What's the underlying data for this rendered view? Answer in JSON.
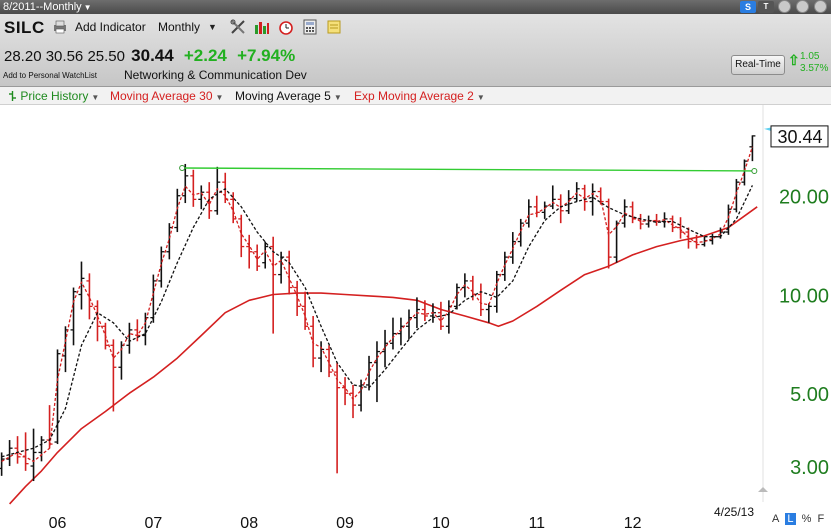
{
  "window": {
    "title": "8/2011--Monthly"
  },
  "toolbar": {
    "symbol": "SILC",
    "add_indicator": "Add Indicator",
    "period": "Monthly",
    "sbadge": "S",
    "tbadge": "T"
  },
  "quote": {
    "open": "28.20",
    "high": "30.56",
    "low": "25.50",
    "last": "30.44",
    "change": "+2.24",
    "change_pct": "+7.94%",
    "watchlist": "Add to Personal WatchList",
    "industry": "Networking & Communication Dev",
    "realtime_label": "Real-Time",
    "rt_change": "1.05",
    "rt_pct": "3.57%"
  },
  "legend": [
    {
      "label": "Price History",
      "color": "#1e8a1e"
    },
    {
      "label": "Moving Average 30",
      "color": "#d42020"
    },
    {
      "label": "Moving Average 5",
      "color": "#111111"
    },
    {
      "label": "Exp Moving Average 2",
      "color": "#d42020"
    }
  ],
  "bottom": {
    "date_label": "4/25/13",
    "icons": [
      "A",
      "L",
      "%",
      "F"
    ]
  },
  "chart_data": {
    "type": "line",
    "scale": "log",
    "ylim": [
      2.5,
      36
    ],
    "y_ticks": [
      3.0,
      5.0,
      10.0,
      20.0
    ],
    "y_tick_labels": [
      "3.00",
      "5.00",
      "10.00",
      "20.00"
    ],
    "x_ticks": [
      2006,
      2007,
      2008,
      2009,
      2010,
      2011,
      2012
    ],
    "x_tick_labels": [
      "06",
      "07",
      "08",
      "09",
      "10",
      "11",
      "12"
    ],
    "xlim": [
      2005.4,
      2013.35
    ],
    "last_price": 30.44,
    "last_price_label": "30.44",
    "resistance": {
      "from": 2007.3,
      "to": 2013.27,
      "y_start": 24.3,
      "y_end": 23.8
    },
    "ohlc": [
      [
        2005.417,
        2.95,
        3.3,
        2.8,
        3.15
      ],
      [
        2005.5,
        3.15,
        3.6,
        3.0,
        3.4
      ],
      [
        2005.583,
        3.4,
        3.7,
        3.05,
        3.2
      ],
      [
        2005.667,
        3.2,
        3.8,
        2.9,
        3.05
      ],
      [
        2005.75,
        3.0,
        3.9,
        2.7,
        3.3
      ],
      [
        2005.833,
        3.3,
        3.7,
        3.1,
        3.6
      ],
      [
        2005.917,
        3.6,
        4.6,
        3.4,
        3.5
      ],
      [
        2006.0,
        3.55,
        6.8,
        3.5,
        6.6
      ],
      [
        2006.083,
        6.5,
        8.0,
        5.8,
        7.8
      ],
      [
        2006.167,
        7.8,
        10.5,
        7.0,
        10.2
      ],
      [
        2006.25,
        10.0,
        12.6,
        9.0,
        11.2
      ],
      [
        2006.333,
        11.0,
        11.6,
        8.4,
        9.2
      ],
      [
        2006.417,
        9.2,
        9.6,
        7.2,
        8.0
      ],
      [
        2006.5,
        8.0,
        8.2,
        6.8,
        7.0
      ],
      [
        2006.583,
        7.0,
        7.3,
        4.4,
        6.0
      ],
      [
        2006.667,
        6.0,
        7.2,
        5.5,
        7.0
      ],
      [
        2006.75,
        7.0,
        8.2,
        6.6,
        7.8
      ],
      [
        2006.833,
        7.8,
        8.4,
        7.2,
        7.5
      ],
      [
        2006.917,
        7.5,
        8.8,
        7.0,
        8.5
      ],
      [
        2007.0,
        8.5,
        11.5,
        8.2,
        11.0
      ],
      [
        2007.083,
        11.0,
        14.0,
        10.5,
        13.5
      ],
      [
        2007.167,
        13.5,
        16.5,
        12.8,
        16.0
      ],
      [
        2007.25,
        16.0,
        21.0,
        15.5,
        20.0
      ],
      [
        2007.333,
        20.0,
        25.0,
        19.0,
        23.0
      ],
      [
        2007.417,
        23.0,
        24.0,
        18.5,
        19.5
      ],
      [
        2007.5,
        19.5,
        21.5,
        18.2,
        20.5
      ],
      [
        2007.583,
        20.5,
        22.0,
        17.0,
        18.0
      ],
      [
        2007.667,
        18.0,
        24.5,
        17.5,
        22.0
      ],
      [
        2007.75,
        22.0,
        23.5,
        19.0,
        19.5
      ],
      [
        2007.833,
        19.5,
        20.5,
        16.5,
        17.0
      ],
      [
        2007.917,
        17.0,
        17.5,
        13.0,
        14.0
      ],
      [
        2008.0,
        14.0,
        15.2,
        12.0,
        13.5
      ],
      [
        2008.083,
        13.5,
        14.2,
        11.8,
        12.2
      ],
      [
        2008.167,
        12.5,
        14.5,
        12.0,
        14.0
      ],
      [
        2008.25,
        14.0,
        15.0,
        7.6,
        11.5
      ],
      [
        2008.333,
        11.5,
        13.5,
        10.8,
        13.0
      ],
      [
        2008.417,
        13.0,
        13.6,
        10.0,
        10.5
      ],
      [
        2008.5,
        10.5,
        11.0,
        8.6,
        9.2
      ],
      [
        2008.583,
        9.2,
        10.2,
        7.8,
        8.0
      ],
      [
        2008.667,
        8.0,
        8.6,
        6.0,
        6.4
      ],
      [
        2008.75,
        6.4,
        7.2,
        5.8,
        6.8
      ],
      [
        2008.833,
        6.8,
        7.0,
        5.6,
        5.8
      ],
      [
        2008.917,
        5.8,
        6.2,
        2.85,
        5.2
      ],
      [
        2009.0,
        5.2,
        5.6,
        4.6,
        5.0
      ],
      [
        2009.083,
        5.0,
        5.3,
        4.2,
        4.6
      ],
      [
        2009.167,
        4.6,
        5.5,
        4.4,
        5.3
      ],
      [
        2009.25,
        5.3,
        6.5,
        5.1,
        6.2
      ],
      [
        2009.333,
        6.2,
        7.2,
        4.7,
        6.7
      ],
      [
        2009.417,
        6.7,
        7.8,
        6.0,
        7.1
      ],
      [
        2009.5,
        7.1,
        8.5,
        6.8,
        7.6
      ],
      [
        2009.583,
        7.6,
        8.5,
        7.0,
        8.0
      ],
      [
        2009.667,
        8.0,
        9.0,
        7.3,
        8.5
      ],
      [
        2009.75,
        8.5,
        9.8,
        7.9,
        9.0
      ],
      [
        2009.833,
        9.0,
        9.6,
        8.3,
        8.6
      ],
      [
        2009.917,
        8.6,
        9.4,
        8.2,
        8.8
      ],
      [
        2010.0,
        8.8,
        9.5,
        7.8,
        8.0
      ],
      [
        2010.083,
        8.0,
        9.6,
        7.6,
        9.2
      ],
      [
        2010.167,
        9.2,
        10.8,
        9.0,
        10.5
      ],
      [
        2010.25,
        10.5,
        11.6,
        9.8,
        11.0
      ],
      [
        2010.333,
        11.0,
        11.4,
        9.6,
        10.0
      ],
      [
        2010.417,
        10.0,
        10.8,
        8.6,
        9.0
      ],
      [
        2010.5,
        9.0,
        9.4,
        8.2,
        9.2
      ],
      [
        2010.583,
        9.2,
        11.8,
        8.8,
        11.5
      ],
      [
        2010.667,
        11.5,
        13.5,
        11.0,
        13.0
      ],
      [
        2010.75,
        13.0,
        15.5,
        12.4,
        14.5
      ],
      [
        2010.833,
        14.5,
        17.0,
        14.0,
        16.5
      ],
      [
        2010.917,
        16.5,
        19.5,
        16.0,
        18.5
      ],
      [
        2011.0,
        18.5,
        20.0,
        17.2,
        17.8
      ],
      [
        2011.083,
        17.8,
        19.2,
        17.0,
        18.6
      ],
      [
        2011.167,
        18.6,
        21.5,
        18.2,
        19.5
      ],
      [
        2011.25,
        19.5,
        20.2,
        16.5,
        18.0
      ],
      [
        2011.333,
        18.0,
        20.8,
        17.6,
        19.6
      ],
      [
        2011.417,
        19.6,
        22.0,
        19.2,
        21.0
      ],
      [
        2011.5,
        21.0,
        21.6,
        18.0,
        19.2
      ],
      [
        2011.583,
        19.2,
        21.8,
        17.4,
        20.6
      ],
      [
        2011.667,
        20.6,
        21.2,
        18.8,
        19.2
      ],
      [
        2011.75,
        19.2,
        19.6,
        12.0,
        13.0
      ],
      [
        2011.833,
        13.0,
        16.8,
        12.5,
        16.5
      ],
      [
        2011.917,
        16.5,
        19.5,
        16.0,
        18.5
      ],
      [
        2012.0,
        18.5,
        19.2,
        16.5,
        17.0
      ],
      [
        2012.083,
        17.0,
        17.6,
        15.8,
        16.4
      ],
      [
        2012.167,
        16.4,
        17.4,
        16.0,
        16.8
      ],
      [
        2012.25,
        16.8,
        17.6,
        16.2,
        16.7
      ],
      [
        2012.333,
        16.7,
        17.8,
        16.0,
        17.0
      ],
      [
        2012.417,
        17.0,
        17.4,
        15.5,
        16.0
      ],
      [
        2012.5,
        16.0,
        17.2,
        14.8,
        15.5
      ],
      [
        2012.583,
        15.5,
        16.0,
        13.8,
        14.5
      ],
      [
        2012.667,
        14.5,
        15.2,
        13.8,
        14.2
      ],
      [
        2012.75,
        14.2,
        15.0,
        14.0,
        14.6
      ],
      [
        2012.833,
        14.6,
        15.3,
        14.2,
        15.0
      ],
      [
        2012.917,
        15.0,
        16.0,
        14.8,
        15.5
      ],
      [
        2013.0,
        15.5,
        18.8,
        15.2,
        18.2
      ],
      [
        2013.083,
        18.2,
        22.5,
        17.8,
        22.0
      ],
      [
        2013.167,
        22.0,
        25.8,
        21.5,
        25.5
      ],
      [
        2013.25,
        28.2,
        30.56,
        25.5,
        30.44
      ]
    ],
    "ma30": [
      [
        2005.5,
        2.3
      ],
      [
        2005.667,
        2.6
      ],
      [
        2005.833,
        2.9
      ],
      [
        2006.0,
        3.3
      ],
      [
        2006.25,
        3.9
      ],
      [
        2006.5,
        4.4
      ],
      [
        2006.75,
        5.0
      ],
      [
        2007.0,
        5.6
      ],
      [
        2007.25,
        6.4
      ],
      [
        2007.5,
        7.5
      ],
      [
        2007.75,
        8.8
      ],
      [
        2008.0,
        9.6
      ],
      [
        2008.25,
        10.0
      ],
      [
        2008.5,
        10.1
      ],
      [
        2008.75,
        10.1
      ],
      [
        2009.0,
        10.0
      ],
      [
        2009.25,
        9.9
      ],
      [
        2009.5,
        9.8
      ],
      [
        2009.75,
        9.6
      ],
      [
        2010.0,
        9.0
      ],
      [
        2010.25,
        8.6
      ],
      [
        2010.5,
        8.2
      ],
      [
        2010.6,
        8.0
      ],
      [
        2010.75,
        8.3
      ],
      [
        2011.0,
        9.2
      ],
      [
        2011.25,
        10.3
      ],
      [
        2011.5,
        11.5
      ],
      [
        2011.75,
        12.2
      ],
      [
        2012.0,
        13.2
      ],
      [
        2012.25,
        14.0
      ],
      [
        2012.5,
        14.6
      ],
      [
        2012.75,
        15.1
      ],
      [
        2013.0,
        16.0
      ],
      [
        2013.15,
        17.2
      ],
      [
        2013.3,
        18.5
      ]
    ],
    "ma5": [
      [
        2005.417,
        3.2
      ],
      [
        2005.583,
        3.3
      ],
      [
        2005.75,
        3.4
      ],
      [
        2005.917,
        3.6
      ],
      [
        2006.083,
        4.5
      ],
      [
        2006.25,
        7.0
      ],
      [
        2006.417,
        8.8
      ],
      [
        2006.583,
        8.2
      ],
      [
        2006.75,
        7.2
      ],
      [
        2006.917,
        7.6
      ],
      [
        2007.083,
        9.5
      ],
      [
        2007.25,
        12.5
      ],
      [
        2007.417,
        16.0
      ],
      [
        2007.583,
        19.5
      ],
      [
        2007.75,
        21.0
      ],
      [
        2007.917,
        18.5
      ],
      [
        2008.083,
        15.5
      ],
      [
        2008.25,
        13.5
      ],
      [
        2008.417,
        12.5
      ],
      [
        2008.583,
        10.5
      ],
      [
        2008.75,
        8.0
      ],
      [
        2008.917,
        6.2
      ],
      [
        2009.083,
        5.3
      ],
      [
        2009.25,
        5.2
      ],
      [
        2009.417,
        5.9
      ],
      [
        2009.583,
        6.8
      ],
      [
        2009.75,
        7.8
      ],
      [
        2009.917,
        8.5
      ],
      [
        2010.083,
        8.7
      ],
      [
        2010.25,
        9.6
      ],
      [
        2010.417,
        10.2
      ],
      [
        2010.583,
        9.8
      ],
      [
        2010.75,
        11.0
      ],
      [
        2010.917,
        14.0
      ],
      [
        2011.083,
        16.8
      ],
      [
        2011.25,
        18.5
      ],
      [
        2011.417,
        19.2
      ],
      [
        2011.583,
        19.8
      ],
      [
        2011.75,
        18.4
      ],
      [
        2011.917,
        17.5
      ],
      [
        2012.083,
        17.0
      ],
      [
        2012.25,
        16.6
      ],
      [
        2012.417,
        16.7
      ],
      [
        2012.583,
        15.8
      ],
      [
        2012.75,
        15.0
      ],
      [
        2012.917,
        15.0
      ],
      [
        2013.083,
        17.0
      ],
      [
        2013.25,
        21.5
      ]
    ],
    "ema2": [
      [
        2005.417,
        3.1
      ],
      [
        2005.583,
        3.3
      ],
      [
        2005.75,
        3.1
      ],
      [
        2005.917,
        3.4
      ],
      [
        2006.0,
        5.5
      ],
      [
        2006.083,
        7.2
      ],
      [
        2006.167,
        9.5
      ],
      [
        2006.25,
        10.9
      ],
      [
        2006.333,
        9.8
      ],
      [
        2006.417,
        8.6
      ],
      [
        2006.5,
        7.5
      ],
      [
        2006.583,
        6.4
      ],
      [
        2006.667,
        6.8
      ],
      [
        2006.75,
        7.6
      ],
      [
        2006.833,
        7.5
      ],
      [
        2006.917,
        8.2
      ],
      [
        2007.0,
        10.1
      ],
      [
        2007.083,
        12.4
      ],
      [
        2007.167,
        14.8
      ],
      [
        2007.25,
        18.3
      ],
      [
        2007.333,
        21.4
      ],
      [
        2007.417,
        20.1
      ],
      [
        2007.5,
        20.4
      ],
      [
        2007.583,
        18.8
      ],
      [
        2007.667,
        21.0
      ],
      [
        2007.75,
        20.0
      ],
      [
        2007.833,
        18.0
      ],
      [
        2007.917,
        15.3
      ],
      [
        2008.0,
        14.1
      ],
      [
        2008.083,
        12.8
      ],
      [
        2008.167,
        13.6
      ],
      [
        2008.25,
        12.2
      ],
      [
        2008.333,
        12.7
      ],
      [
        2008.417,
        11.2
      ],
      [
        2008.5,
        9.9
      ],
      [
        2008.583,
        8.6
      ],
      [
        2008.667,
        7.1
      ],
      [
        2008.75,
        6.9
      ],
      [
        2008.833,
        6.2
      ],
      [
        2008.917,
        5.5
      ],
      [
        2009.0,
        5.2
      ],
      [
        2009.083,
        4.8
      ],
      [
        2009.167,
        5.1
      ],
      [
        2009.25,
        5.8
      ],
      [
        2009.333,
        6.4
      ],
      [
        2009.417,
        6.9
      ],
      [
        2009.5,
        7.4
      ],
      [
        2009.583,
        7.8
      ],
      [
        2009.667,
        8.3
      ],
      [
        2009.75,
        8.8
      ],
      [
        2009.833,
        8.7
      ],
      [
        2009.917,
        8.8
      ],
      [
        2010.0,
        8.3
      ],
      [
        2010.083,
        8.9
      ],
      [
        2010.167,
        10.0
      ],
      [
        2010.25,
        10.7
      ],
      [
        2010.333,
        10.2
      ],
      [
        2010.417,
        9.4
      ],
      [
        2010.5,
        9.3
      ],
      [
        2010.583,
        10.8
      ],
      [
        2010.667,
        12.3
      ],
      [
        2010.75,
        13.8
      ],
      [
        2010.833,
        15.6
      ],
      [
        2010.917,
        17.5
      ],
      [
        2011.0,
        17.7
      ],
      [
        2011.083,
        18.3
      ],
      [
        2011.167,
        19.1
      ],
      [
        2011.25,
        18.4
      ],
      [
        2011.333,
        19.2
      ],
      [
        2011.417,
        20.4
      ],
      [
        2011.5,
        19.6
      ],
      [
        2011.583,
        20.3
      ],
      [
        2011.667,
        19.6
      ],
      [
        2011.75,
        15.2
      ],
      [
        2011.833,
        16.1
      ],
      [
        2011.917,
        17.7
      ],
      [
        2012.0,
        17.2
      ],
      [
        2012.083,
        16.7
      ],
      [
        2012.167,
        16.8
      ],
      [
        2012.25,
        16.7
      ],
      [
        2012.333,
        16.9
      ],
      [
        2012.417,
        16.3
      ],
      [
        2012.5,
        15.8
      ],
      [
        2012.583,
        14.9
      ],
      [
        2012.667,
        14.4
      ],
      [
        2012.75,
        14.5
      ],
      [
        2012.833,
        14.8
      ],
      [
        2012.917,
        15.3
      ],
      [
        2013.0,
        17.2
      ],
      [
        2013.083,
        20.4
      ],
      [
        2013.167,
        23.8
      ],
      [
        2013.25,
        28.2
      ]
    ]
  }
}
